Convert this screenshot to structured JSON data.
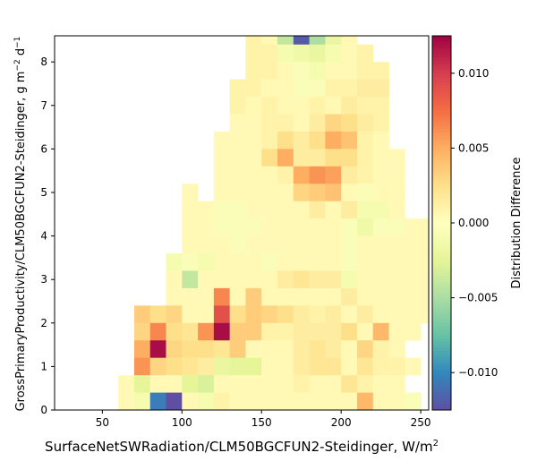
{
  "chart_data": {
    "type": "heatmap",
    "title": "",
    "xlabel": "SurfaceNetSWRadiation/CLM50BGCFUN2-Steidinger,",
    "xlabel_unit": "W/m",
    "xlabel_unit_sup": "2",
    "ylabel": "GrossPrimaryProductivity/CLM50BGCFUN2-Steidinger,",
    "ylabel_unit": "g m",
    "ylabel_unit_sup1": "−2",
    "ylabel_unit_mid": " d",
    "ylabel_unit_sup2": "−1",
    "xlim": [
      20,
      255
    ],
    "ylim": [
      0,
      8.6
    ],
    "xticks": [
      50,
      100,
      150,
      200,
      250
    ],
    "xtick_labels": [
      "50",
      "100",
      "150",
      "200",
      "250"
    ],
    "yticks": [
      0,
      1,
      2,
      3,
      4,
      5,
      6,
      7,
      8
    ],
    "ytick_labels": [
      "0",
      "1",
      "2",
      "3",
      "4",
      "5",
      "6",
      "7",
      "8"
    ],
    "bin_width_x": 10,
    "bin_height_y": 0.4,
    "x_bin_starts": [
      20,
      30,
      40,
      50,
      60,
      70,
      80,
      90,
      100,
      110,
      120,
      130,
      140,
      150,
      160,
      170,
      180,
      190,
      200,
      210,
      220,
      230,
      240,
      250
    ],
    "y_bin_starts_top_down": [
      8.4,
      8.0,
      7.6,
      7.2,
      6.8,
      6.4,
      6.0,
      5.6,
      5.2,
      4.8,
      4.4,
      4.0,
      3.6,
      3.2,
      2.8,
      2.4,
      2.0,
      1.6,
      1.2,
      0.8,
      0.4,
      0.0
    ],
    "values": [
      [
        null,
        null,
        null,
        null,
        null,
        null,
        null,
        null,
        null,
        null,
        null,
        null,
        0.001,
        0.0005,
        -0.004,
        -0.012,
        -0.005,
        -0.002,
        0.0005,
        null,
        null,
        null,
        null,
        null
      ],
      [
        null,
        null,
        null,
        null,
        null,
        null,
        null,
        null,
        null,
        null,
        null,
        null,
        0.001,
        0.001,
        -0.001,
        -0.0015,
        -0.002,
        -0.001,
        0.0005,
        0.001,
        null,
        null,
        null,
        null
      ],
      [
        null,
        null,
        null,
        null,
        null,
        null,
        null,
        null,
        null,
        null,
        null,
        null,
        0.001,
        0.001,
        0.0005,
        -0.0005,
        -0.001,
        0.0005,
        0.0005,
        0.001,
        0.001,
        null,
        null,
        null
      ],
      [
        null,
        null,
        null,
        null,
        null,
        null,
        null,
        null,
        null,
        null,
        null,
        0.001,
        0.001,
        0.0005,
        0.0005,
        -0.0005,
        -0.0005,
        0.001,
        0.001,
        0.0015,
        0.0015,
        null,
        null,
        null
      ],
      [
        null,
        null,
        null,
        null,
        null,
        null,
        null,
        null,
        null,
        null,
        null,
        0.001,
        0.0005,
        0.001,
        0.0005,
        0.0005,
        0.001,
        0.0005,
        0.0015,
        0.001,
        0.001,
        null,
        null,
        null
      ],
      [
        null,
        null,
        null,
        null,
        null,
        null,
        null,
        null,
        null,
        null,
        null,
        0.0005,
        0.0005,
        0.001,
        0.001,
        0.0005,
        0.0015,
        0.003,
        0.0025,
        0.0015,
        0.001,
        null,
        null,
        null
      ],
      [
        null,
        null,
        null,
        null,
        null,
        null,
        null,
        null,
        null,
        null,
        0.0005,
        0.0005,
        0.0005,
        0.001,
        0.0025,
        0.0015,
        0.0025,
        0.005,
        0.004,
        0.001,
        0.0005,
        null,
        null,
        null
      ],
      [
        null,
        null,
        null,
        null,
        null,
        null,
        null,
        null,
        null,
        null,
        0.0005,
        0.0005,
        0.0005,
        0.0025,
        0.005,
        0.0015,
        0.0015,
        0.0025,
        0.0025,
        0.001,
        0.0005,
        0.0005,
        null,
        null
      ],
      [
        null,
        null,
        null,
        null,
        null,
        null,
        null,
        null,
        null,
        null,
        0.0005,
        0.0005,
        0.0005,
        0.0005,
        0.001,
        0.005,
        0.006,
        0.0055,
        0.0015,
        0.001,
        0.0005,
        0.0005,
        null,
        null
      ],
      [
        null,
        null,
        null,
        null,
        null,
        null,
        null,
        null,
        0.0005,
        null,
        0.0005,
        0.0005,
        0.0005,
        0.0005,
        0.0005,
        0.003,
        0.0035,
        0.004,
        0.0005,
        -0.0005,
        0.0005,
        0.0005,
        null,
        null
      ],
      [
        null,
        null,
        null,
        null,
        null,
        null,
        null,
        null,
        0.0005,
        0.0005,
        -0.0005,
        -0.0005,
        0.0005,
        0.0005,
        0.0005,
        0.0005,
        0.0015,
        0.0005,
        0.0015,
        -0.001,
        -0.001,
        0.0005,
        null,
        null
      ],
      [
        null,
        null,
        null,
        null,
        null,
        null,
        null,
        null,
        0.0005,
        0.0005,
        -0.0005,
        -0.0005,
        -0.0005,
        0.0005,
        0.0005,
        0.0005,
        0.0005,
        0.0005,
        -0.0005,
        -0.0015,
        -0.0005,
        -0.0005,
        0.0005,
        0.0005
      ],
      [
        null,
        null,
        null,
        null,
        null,
        null,
        null,
        null,
        0.0005,
        0.0005,
        0.0005,
        -0.0005,
        0.0005,
        0.0005,
        0.0005,
        0.0005,
        0.0005,
        0.0005,
        -0.0005,
        0.0005,
        0.0005,
        0.0005,
        0.0005,
        0.0005
      ],
      [
        null,
        null,
        null,
        null,
        null,
        null,
        null,
        -0.001,
        -0.0005,
        -0.001,
        0.0005,
        0.0005,
        0.0005,
        -0.0005,
        0.0005,
        0.0005,
        0.0005,
        0.0005,
        -0.0005,
        0.0005,
        0.0005,
        0.0005,
        0.0005,
        0.0005
      ],
      [
        null,
        null,
        null,
        null,
        null,
        null,
        null,
        0.0005,
        -0.004,
        0.0005,
        0.0005,
        0.0005,
        0.0005,
        0.0005,
        0.0015,
        0.002,
        0.0015,
        0.0015,
        -0.001,
        0.0005,
        0.0005,
        0.0005,
        0.0005,
        0.0005
      ],
      [
        null,
        null,
        null,
        null,
        null,
        null,
        null,
        0.0005,
        0.0005,
        0.0005,
        0.0065,
        0.0005,
        0.0035,
        0.0005,
        0.0005,
        0.0005,
        0.0005,
        0.0005,
        0.0015,
        0.0005,
        0.0005,
        0.0005,
        0.0005,
        0.0005
      ],
      [
        null,
        null,
        null,
        null,
        null,
        0.0035,
        0.0025,
        0.003,
        0.0005,
        0.0005,
        0.009,
        0.0025,
        0.0035,
        0.003,
        0.0025,
        0.0015,
        0.001,
        0.0015,
        0.0005,
        0.0015,
        0.0005,
        0.0005,
        0.0005,
        0.0005
      ],
      [
        null,
        null,
        null,
        null,
        null,
        0.003,
        0.0065,
        0.0025,
        0.002,
        0.006,
        0.012,
        0.0035,
        0.0035,
        0.001,
        0.001,
        0.0015,
        0.0015,
        0.0015,
        0.0025,
        0.0005,
        0.0045,
        0.0005,
        0.0005,
        null
      ],
      [
        null,
        null,
        null,
        null,
        null,
        0.005,
        0.012,
        0.003,
        0.0025,
        0.0025,
        0.002,
        0.0035,
        0.0005,
        0.0005,
        0.0005,
        0.0015,
        0.002,
        0.0015,
        0.0005,
        0.003,
        0.001,
        0.0005,
        null,
        null
      ],
      [
        null,
        null,
        null,
        null,
        null,
        0.006,
        0.003,
        0.0025,
        0.002,
        0.0015,
        -0.002,
        -0.0025,
        -0.0025,
        0.0005,
        0.0005,
        0.0015,
        0.002,
        0.002,
        0.0005,
        0.002,
        0.001,
        0.001,
        0.0005,
        null
      ],
      [
        null,
        null,
        null,
        null,
        0.0005,
        -0.0025,
        0.0005,
        0.0005,
        -0.0025,
        -0.003,
        0.0005,
        0.0005,
        0.0005,
        0.0005,
        0.0005,
        0.001,
        0.0005,
        0.0005,
        0.002,
        0.001,
        0.0005,
        0.0005,
        null,
        null
      ],
      [
        null,
        null,
        null,
        null,
        0.0005,
        -0.001,
        -0.0105,
        -0.0125,
        0.0005,
        -0.001,
        0.001,
        0.0005,
        0.0005,
        0.0005,
        0.0005,
        0.0005,
        0.0005,
        0.0005,
        0.0005,
        0.0045,
        0.0005,
        0.0005,
        -0.0005,
        null
      ]
    ],
    "colormap": "Spectral_r",
    "vmin": -0.0125,
    "vmax": 0.0125,
    "colorbar_label": "Distribution Difference",
    "colorbar_ticks": [
      0.01,
      0.005,
      0.0,
      -0.005,
      -0.01
    ],
    "colorbar_tick_labels": [
      "0.010",
      "0.005",
      "0.000",
      "−0.005",
      "−0.010"
    ]
  }
}
